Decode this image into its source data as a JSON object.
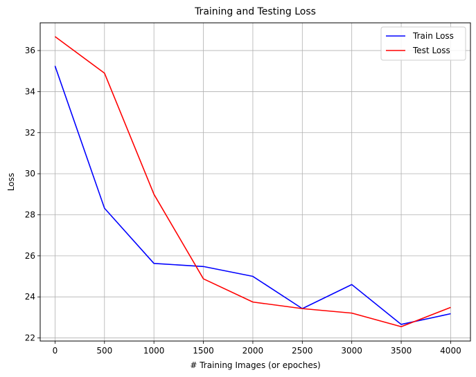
{
  "chart_data": {
    "type": "line",
    "title": "Training and Testing Loss",
    "xlabel": "# Training Images (or epoches)",
    "ylabel": "Loss",
    "x": [
      0,
      500,
      1000,
      1500,
      2000,
      2500,
      3000,
      3500,
      4000
    ],
    "xticks": [
      0,
      500,
      1000,
      1500,
      2000,
      2500,
      3000,
      3500,
      4000
    ],
    "yticks": [
      22,
      24,
      26,
      28,
      30,
      32,
      34,
      36
    ],
    "xlim": [
      -150,
      4200
    ],
    "ylim": [
      21.85,
      37.35
    ],
    "grid": true,
    "legend_position": "top-right",
    "series": [
      {
        "name": "Train Loss",
        "color": "#0000ff",
        "values": [
          35.25,
          28.32,
          25.63,
          25.48,
          25.0,
          23.43,
          24.6,
          22.66,
          23.18
        ]
      },
      {
        "name": "Test Loss",
        "color": "#ff0000",
        "values": [
          36.68,
          34.9,
          29.0,
          24.88,
          23.75,
          23.43,
          23.21,
          22.55,
          23.49
        ]
      }
    ]
  }
}
